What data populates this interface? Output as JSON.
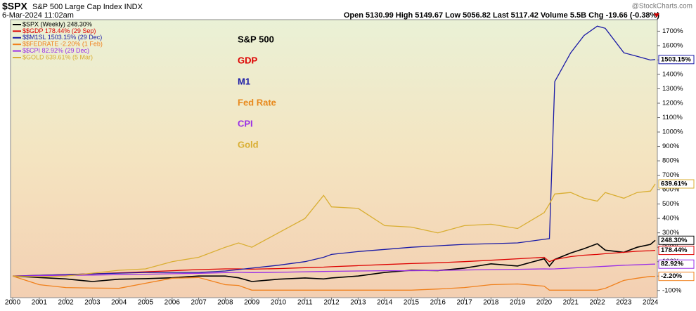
{
  "chart_data": {
    "type": "line",
    "symbol": "$SPX",
    "name": "S&P 500 Large Cap Index INDX",
    "date": "6-Mar-2024 11:02am",
    "quote": "Open 5130.99 High 5149.67 Low 5056.82 Last 5117.42 Volume 5.5B Chg -19.66 (-0.38%)",
    "source": "@StockCharts.com",
    "annotations": [
      {
        "text": "S&P 500",
        "color": "#000000"
      },
      {
        "text": "GDP",
        "color": "#dd0000"
      },
      {
        "text": "M1",
        "color": "#1a1aa6"
      },
      {
        "text": "Fed Rate",
        "color": "#e8891c"
      },
      {
        "text": "CPI",
        "color": "#9a2ee6"
      },
      {
        "text": "Gold",
        "color": "#d9ae32"
      }
    ],
    "x": [
      2000,
      2001,
      2002,
      2003,
      2004,
      2005,
      2006,
      2007,
      2008,
      2008.5,
      2009,
      2010,
      2011,
      2011.7,
      2012,
      2013,
      2014,
      2015,
      2016,
      2017,
      2018,
      2019,
      2020,
      2020.2,
      2020.4,
      2021,
      2021.5,
      2022,
      2022.3,
      2023,
      2023.5,
      2024,
      2024.18
    ],
    "xlim": [
      1999.92,
      2024.26
    ],
    "xticks": [
      2000,
      2001,
      2002,
      2003,
      2004,
      2005,
      2006,
      2007,
      2008,
      2009,
      2010,
      2011,
      2012,
      2013,
      2014,
      2015,
      2016,
      2017,
      2018,
      2019,
      2020,
      2021,
      2022,
      2023,
      2024
    ],
    "ylim": [
      -150,
      1780
    ],
    "yticks": [
      {
        "value": -100,
        "label": "-100%"
      },
      {
        "value": 0,
        "label": "0%"
      },
      {
        "value": 100,
        "label": "100%"
      },
      {
        "value": 200,
        "label": "200%"
      },
      {
        "value": 300,
        "label": "300%"
      },
      {
        "value": 400,
        "label": "400%"
      },
      {
        "value": 500,
        "label": "500%"
      },
      {
        "value": 600,
        "label": "600%"
      },
      {
        "value": 700,
        "label": "700%"
      },
      {
        "value": 800,
        "label": "800%"
      },
      {
        "value": 900,
        "label": "900%"
      },
      {
        "value": 1000,
        "label": "1000%"
      },
      {
        "value": 1100,
        "label": "1100%"
      },
      {
        "value": 1200,
        "label": "1200%"
      },
      {
        "value": 1300,
        "label": "1300%"
      },
      {
        "value": 1400,
        "label": "1400%"
      },
      {
        "value": 1500,
        "label": "1500%"
      },
      {
        "value": 1600,
        "label": "1600%"
      },
      {
        "value": 1700,
        "label": "1700%"
      }
    ],
    "series": [
      {
        "name": "$SPX (Weekly) 248.30%",
        "color": "#000000",
        "last_label": "248.30%",
        "values": [
          0,
          -10,
          -20,
          -38,
          -22,
          -18,
          -12,
          0,
          0,
          -12,
          -38,
          -22,
          -13,
          -20,
          -13,
          0,
          25,
          40,
          38,
          55,
          85,
          70,
          120,
          70,
          115,
          160,
          190,
          225,
          180,
          165,
          200,
          220,
          248.3
        ]
      },
      {
        "name": "$$GDP 178.44% (29 Sep)",
        "color": "#dd0000",
        "last_label": "178.44%",
        "values": [
          0,
          5,
          10,
          15,
          22,
          30,
          37,
          45,
          50,
          50,
          48,
          52,
          58,
          62,
          65,
          72,
          80,
          87,
          92,
          100,
          110,
          120,
          130,
          100,
          115,
          135,
          145,
          150,
          155,
          165,
          172,
          176,
          178.44
        ]
      },
      {
        "name": "$$M1SL 1503.15% (29 Dec)",
        "color": "#1a1aa6",
        "last_label": "1503.15%",
        "values": [
          0,
          5,
          10,
          15,
          20,
          25,
          25,
          25,
          35,
          45,
          55,
          75,
          100,
          130,
          150,
          170,
          185,
          200,
          210,
          220,
          225,
          230,
          255,
          260,
          1350,
          1550,
          1670,
          1735,
          1720,
          1550,
          1525,
          1500,
          1503.15
        ]
      },
      {
        "name": "$$FEDRATE -2.20% (1 Feb)",
        "color": "#f0801c",
        "last_label": "-2.20%",
        "values": [
          0,
          -60,
          -80,
          -83,
          -85,
          -50,
          -15,
          -10,
          -60,
          -65,
          -98,
          -98,
          -98,
          -98,
          -98,
          -98,
          -98,
          -98,
          -90,
          -80,
          -60,
          -55,
          -70,
          -98,
          -98,
          -98,
          -98,
          -98,
          -85,
          -30,
          -15,
          -2.2,
          -2.2
        ]
      },
      {
        "name": "$$CPI 82.92% (29 Dec)",
        "color": "#9a2ee6",
        "last_label": "82.92%",
        "values": [
          0,
          3,
          5,
          7,
          10,
          13,
          16,
          19,
          24,
          26,
          24,
          26,
          30,
          32,
          33,
          35,
          37,
          37,
          39,
          42,
          45,
          47,
          50,
          49,
          50,
          55,
          60,
          65,
          68,
          75,
          78,
          82,
          82.92
        ]
      },
      {
        "name": "$GOLD 639.61% (5 Mar)",
        "color": "#d9ae32",
        "last_label": "639.61%",
        "values": [
          0,
          -5,
          0,
          20,
          40,
          50,
          100,
          130,
          200,
          230,
          200,
          300,
          400,
          560,
          480,
          470,
          350,
          340,
          300,
          350,
          360,
          330,
          440,
          500,
          570,
          580,
          540,
          520,
          580,
          540,
          580,
          590,
          639.61
        ]
      }
    ]
  }
}
